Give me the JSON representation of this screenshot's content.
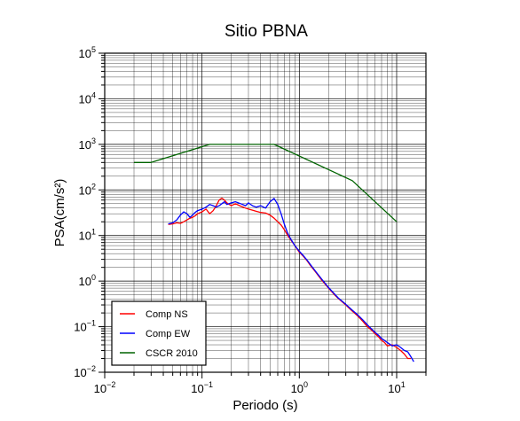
{
  "chart_data": {
    "type": "line",
    "title": "Sitio PBNA",
    "xlabel": "Periodo (s)",
    "ylabel": "PSA(cm/s²)",
    "x_scale": "log",
    "y_scale": "log",
    "xlim": [
      0.01,
      20
    ],
    "ylim": [
      0.01,
      100000
    ],
    "x_ticks": [
      {
        "value": 0.01,
        "base": "10",
        "exp": "−2"
      },
      {
        "value": 0.1,
        "base": "10",
        "exp": "−1"
      },
      {
        "value": 1,
        "base": "10",
        "exp": "0"
      },
      {
        "value": 10,
        "base": "10",
        "exp": "1"
      }
    ],
    "y_ticks": [
      {
        "value": 0.01,
        "base": "10",
        "exp": "−2"
      },
      {
        "value": 0.1,
        "base": "10",
        "exp": "−1"
      },
      {
        "value": 1,
        "base": "10",
        "exp": "0"
      },
      {
        "value": 10,
        "base": "10",
        "exp": "1"
      },
      {
        "value": 100,
        "base": "10",
        "exp": "2"
      },
      {
        "value": 1000,
        "base": "10",
        "exp": "3"
      },
      {
        "value": 10000,
        "base": "10",
        "exp": "4"
      },
      {
        "value": 100000,
        "base": "10",
        "exp": "5"
      }
    ],
    "grid": true,
    "legend_position": "bottom-left",
    "series": [
      {
        "name": "Comp NS",
        "color": "#ff0000",
        "x": [
          0.045,
          0.05,
          0.055,
          0.06,
          0.065,
          0.07,
          0.075,
          0.08,
          0.085,
          0.09,
          0.1,
          0.11,
          0.12,
          0.13,
          0.14,
          0.15,
          0.16,
          0.17,
          0.18,
          0.2,
          0.22,
          0.25,
          0.28,
          0.3,
          0.33,
          0.36,
          0.4,
          0.45,
          0.5,
          0.55,
          0.6,
          0.65,
          0.7,
          0.75,
          0.8,
          0.9,
          1.0,
          1.1,
          1.2,
          1.3,
          1.5,
          1.7,
          2.0,
          2.3,
          2.5,
          3.0,
          3.5,
          4.0,
          4.5,
          5.0,
          5.5,
          6.0,
          6.5,
          7.0,
          7.5,
          8.0,
          9.0,
          10.0,
          11.0,
          12.0,
          13.0,
          14.0
        ],
        "y": [
          17.5,
          18,
          19,
          18.5,
          20,
          22,
          24,
          25,
          27,
          30,
          33,
          38,
          30,
          35,
          45,
          60,
          66,
          60,
          52,
          45,
          50,
          44,
          40,
          38,
          36,
          34,
          32,
          31,
          28,
          24,
          20,
          17,
          13.5,
          10.5,
          8.5,
          6,
          4.3,
          3.5,
          2.8,
          2.2,
          1.5,
          1.05,
          0.7,
          0.5,
          0.42,
          0.3,
          0.22,
          0.17,
          0.13,
          0.1,
          0.085,
          0.07,
          0.06,
          0.05,
          0.045,
          0.038,
          0.04,
          0.035,
          0.03,
          0.025,
          0.02,
          0.02
        ]
      },
      {
        "name": "Comp EW",
        "color": "#0000ff",
        "x": [
          0.045,
          0.05,
          0.055,
          0.06,
          0.065,
          0.07,
          0.075,
          0.08,
          0.085,
          0.09,
          0.1,
          0.11,
          0.12,
          0.13,
          0.14,
          0.15,
          0.16,
          0.17,
          0.18,
          0.2,
          0.22,
          0.25,
          0.28,
          0.3,
          0.33,
          0.36,
          0.4,
          0.45,
          0.5,
          0.55,
          0.6,
          0.65,
          0.7,
          0.75,
          0.8,
          0.9,
          1.0,
          1.1,
          1.2,
          1.3,
          1.5,
          1.7,
          2.0,
          2.3,
          2.5,
          3.0,
          3.5,
          4.0,
          4.5,
          5.0,
          5.5,
          6.0,
          6.5,
          7.0,
          7.5,
          8.0,
          9.0,
          10.0,
          11.0,
          12.0,
          13.0,
          14.0,
          15.0
        ],
        "y": [
          18,
          19,
          22,
          28,
          33,
          30,
          25,
          28,
          32,
          35,
          38,
          42,
          48,
          45,
          42,
          45,
          50,
          55,
          48,
          52,
          55,
          50,
          45,
          52,
          45,
          42,
          45,
          40,
          55,
          65,
          48,
          30,
          18,
          12,
          9,
          6,
          4.5,
          3.6,
          2.9,
          2.3,
          1.55,
          1.1,
          0.72,
          0.52,
          0.43,
          0.31,
          0.23,
          0.18,
          0.14,
          0.11,
          0.09,
          0.075,
          0.065,
          0.055,
          0.05,
          0.045,
          0.038,
          0.04,
          0.035,
          0.03,
          0.028,
          0.022,
          0.017
        ]
      },
      {
        "name": "CSCR 2010",
        "color": "#006400",
        "x": [
          0.02,
          0.03,
          0.12,
          0.55,
          3.5,
          10
        ],
        "y": [
          400,
          400,
          1000,
          1000,
          160,
          20
        ]
      }
    ]
  }
}
